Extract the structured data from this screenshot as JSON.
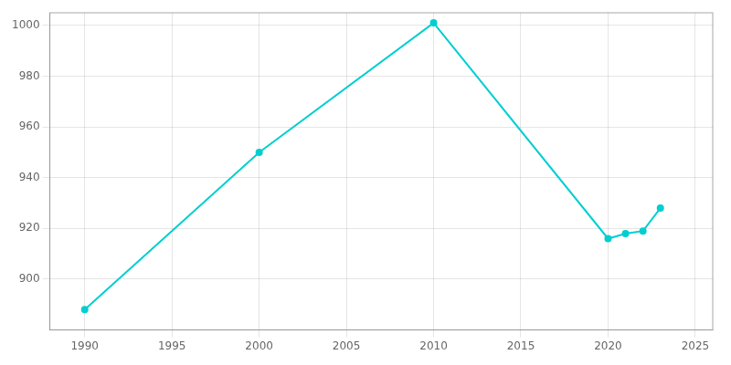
{
  "chart_data": {
    "type": "line",
    "x": [
      1990,
      2000,
      2010,
      2020,
      2021,
      2022,
      2023
    ],
    "values": [
      888,
      950,
      1001,
      916,
      918,
      919,
      928
    ],
    "color": "#00CED1",
    "marker": "circle",
    "xlim": [
      1988,
      2026
    ],
    "ylim": [
      880,
      1005
    ],
    "xticks": [
      1990,
      1995,
      2000,
      2005,
      2010,
      2015,
      2020,
      2025
    ],
    "yticks": [
      900,
      920,
      940,
      960,
      980,
      1000
    ],
    "grid": true
  }
}
